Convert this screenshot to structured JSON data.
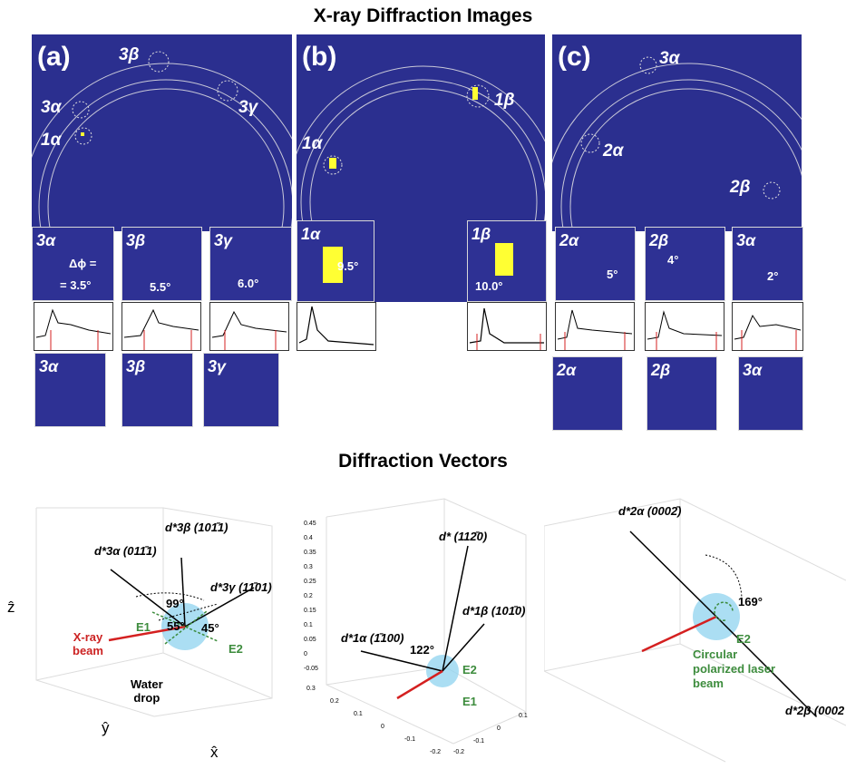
{
  "titles": {
    "xrd": "X-ray Diffraction Images",
    "vectors": "Diffraction Vectors"
  },
  "panel_a": {
    "tag": "(a)",
    "labels": {
      "l3a": "3α",
      "l3b": "3β",
      "l3g": "3γ",
      "l1a": "1α"
    },
    "insets": {
      "i3a": "3α",
      "i3b": "3β",
      "i3g": "3γ"
    },
    "delta_phi": "Δϕ =",
    "angles": {
      "a3a": "= 3.5°",
      "a3b": "5.5°",
      "a3g": "6.0°"
    },
    "zoom": {
      "z3a": "3α",
      "z3b": "3β",
      "z3g": "3γ"
    }
  },
  "panel_b": {
    "tag": "(b)",
    "labels": {
      "l1a": "1α",
      "l1b": "1β"
    },
    "insets": {
      "i1a": "1α",
      "i1b": "1β"
    },
    "angles": {
      "a1a": "9.5°",
      "a1b": "10.0°"
    }
  },
  "panel_c": {
    "tag": "(c)",
    "labels": {
      "l3a": "3α",
      "l2a": "2α",
      "l2b": "2β"
    },
    "insets": {
      "i2a": "2α",
      "i2b": "2β",
      "i3a": "3α"
    },
    "angles": {
      "a2a": "5°",
      "a2b": "4°",
      "a3a": "2°"
    },
    "zoom": {
      "z2a": "2α",
      "z2b": "2β",
      "z3a": "3α"
    }
  },
  "plot1": {
    "vectors": {
      "d3b": "d*3β (101̄1)",
      "d3a": "d*3α (011̄1)",
      "d3g": "d*3γ (11̄01)"
    },
    "angles": {
      "a99": "99°",
      "a55": "55°",
      "a45": "45°"
    },
    "e1": "E1",
    "e2": "E2",
    "xray": "X-ray\nbeam",
    "water": "Water\ndrop",
    "axes": {
      "z": "ẑ",
      "y": "ŷ",
      "x": "x̂"
    }
  },
  "plot2": {
    "vectors": {
      "d1120": "d* (112̄0)",
      "d1b": "d*1β (101̄0)",
      "d1a": "d*1α (1̄100)"
    },
    "angle": "122°",
    "e1": "E1",
    "e2": "E2",
    "zticks": [
      "0.45",
      "0.4",
      "0.35",
      "0.3",
      "0.25",
      "0.2",
      "0.15",
      "0.1",
      "0.05",
      "0",
      "-0.05"
    ],
    "yticks": [
      "0.3",
      "0.2",
      "0.1",
      "0",
      "-0.1",
      "-0.2"
    ],
    "xticks": [
      "0.1",
      "0",
      "-0.1",
      "-0.2"
    ]
  },
  "plot3": {
    "vectors": {
      "d2a": "d*2α (0002̄)",
      "d2b": "d*2β (0002"
    },
    "angle": "169°",
    "e2": "E2",
    "laser": "Circular\npolarized laser\nbeam"
  },
  "colors": {
    "detector": "#2b2f8f",
    "spots": "#ffff33",
    "beam": "#d42020",
    "drop": "#8fd3ef",
    "efield": "#3d8c3d"
  }
}
